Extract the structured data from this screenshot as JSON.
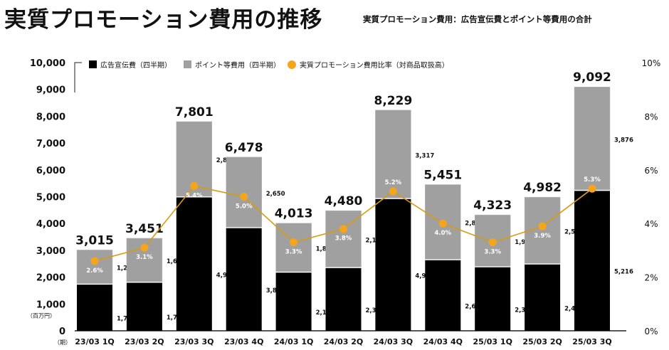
{
  "title": "実質プロモーション費用の推移",
  "subtitle": "実質プロモーション費用：広告宣伝費とポイント等費用の合計",
  "colors": {
    "advertising": "#000000",
    "points": "#a0a0a0",
    "ratio": "#f5a51c",
    "ratio_line": "#d99a12"
  },
  "chart_data": {
    "type": "bar",
    "stacked": true,
    "categories": [
      "23/03 1Q",
      "23/03 2Q",
      "23/03 3Q",
      "23/03 4Q",
      "24/03 1Q",
      "24/03 2Q",
      "24/03 3Q",
      "24/03 4Q",
      "25/03 1Q",
      "25/03 2Q",
      "25/03 3Q"
    ],
    "series": [
      {
        "name": "広告宣伝費（四半期）",
        "values": [
          1721,
          1791,
          4973,
          3827,
          2168,
          2338,
          4912,
          2631,
          2368,
          2473,
          5216
        ]
      },
      {
        "name": "ポイント等費用（四半期）",
        "values": [
          1293,
          1659,
          2827,
          2650,
          1844,
          2142,
          3317,
          2820,
          1954,
          2509,
          3876
        ]
      },
      {
        "name": "実質プロモーション費用比率（対商品取扱高）",
        "type": "line",
        "axis": "right",
        "values": [
          2.6,
          3.1,
          5.4,
          5.0,
          3.3,
          3.8,
          5.2,
          4.0,
          3.3,
          3.9,
          5.3
        ]
      }
    ],
    "totals": [
      3015,
      3451,
      7801,
      6478,
      4013,
      4480,
      8229,
      5451,
      4323,
      4982,
      9092
    ],
    "ylim": [
      0,
      10000
    ],
    "yticks": [
      "0",
      "1,000",
      "2,000",
      "3,000",
      "4,000",
      "5,000",
      "6,000",
      "7,000",
      "8,000",
      "9,000",
      "10,000"
    ],
    "y2lim": [
      0,
      10
    ],
    "y2ticks": [
      "0%",
      "2%",
      "4%",
      "6%",
      "8%",
      "10%"
    ],
    "ylabel": "（百万円）",
    "xlabel": "（期）",
    "legend_position": "top",
    "grid": false
  }
}
